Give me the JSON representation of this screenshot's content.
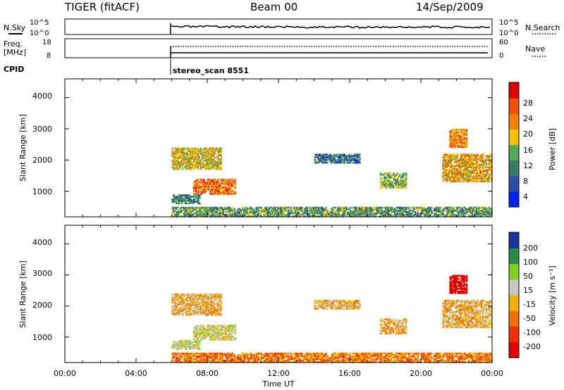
{
  "header": {
    "radar": "TIGER (fitACF)",
    "beam": "Beam 00",
    "date": "14/Sep/2009"
  },
  "noise_panel": {
    "left_label": "N.Sky",
    "left_ticks": [
      "10^5",
      "10^0"
    ],
    "right_label": "N.Search",
    "right_ticks": [
      "10^5",
      "10^0"
    ]
  },
  "freq_panel": {
    "left_label_line1": "Freq.",
    "left_label_line2": "[MHz]",
    "left_ticks": [
      "18",
      "8"
    ],
    "right_label": "Nave",
    "right_ticks": [
      "60",
      "0"
    ]
  },
  "cpid": {
    "label": "CPID",
    "program": "stereo_scan 8551"
  },
  "power_panel": {
    "ylabel": "Slant Range [km]",
    "yticks": [
      "4000",
      "3000",
      "2000",
      "1000"
    ],
    "colorbar_label": "Power [dB]",
    "colorbar_ticks": [
      "28",
      "24",
      "20",
      "16",
      "12",
      "8",
      "4"
    ]
  },
  "velocity_panel": {
    "ylabel": "Slant Range [km]",
    "yticks": [
      "4000",
      "3000",
      "2000",
      "1000"
    ],
    "colorbar_label": "Velocity [m s⁻¹]",
    "colorbar_ticks": [
      "200",
      "100",
      "50",
      "15",
      "-15",
      "-50",
      "-100",
      "-200"
    ]
  },
  "xaxis": {
    "label": "Time UT",
    "ticks": [
      "00:00",
      "04:00",
      "08:00",
      "12:00",
      "16:00",
      "20:00",
      "00:00"
    ]
  },
  "chart_data": {
    "type": "heatmap",
    "x_range_hours": [
      0,
      24
    ],
    "y_range_km": [
      180,
      4600
    ],
    "data_start_hour": 6,
    "power_colors": [
      "#0022ee",
      "#2f4fa5",
      "#3a7a5e",
      "#55aa55",
      "#f0c000",
      "#f08000",
      "#f05000",
      "#e00000"
    ],
    "power_levels": [
      4,
      8,
      12,
      16,
      20,
      24,
      28
    ],
    "velocity_colors": [
      "#2030a0",
      "#2a8a4a",
      "#7fd020",
      "#c8c8c0",
      "#f0b000",
      "#f07000",
      "#f03000",
      "#e00000"
    ],
    "velocity_levels": [
      200,
      100,
      50,
      15,
      -15,
      -50,
      -100,
      -200
    ],
    "echo_regions": [
      {
        "t0": 6.0,
        "t1": 8.8,
        "r0": 1700,
        "r1": 2400,
        "power_dB": 18,
        "velocity": 0
      },
      {
        "t0": 7.2,
        "t1": 9.6,
        "r0": 900,
        "r1": 1400,
        "power_dB": 24,
        "velocity": 30
      },
      {
        "t0": 6.0,
        "t1": 7.6,
        "r0": 600,
        "r1": 900,
        "power_dB": 10,
        "velocity": 40
      },
      {
        "t0": 17.7,
        "t1": 19.2,
        "r0": 1100,
        "r1": 1600,
        "power_dB": 14,
        "velocity": 0
      },
      {
        "t0": 21.2,
        "t1": 24.0,
        "r0": 1300,
        "r1": 2200,
        "power_dB": 20,
        "velocity": 0
      },
      {
        "t0": 21.6,
        "t1": 22.6,
        "r0": 2400,
        "r1": 3000,
        "power_dB": 22,
        "velocity": -150
      },
      {
        "t0": 14.0,
        "t1": 16.6,
        "r0": 1900,
        "r1": 2200,
        "power_dB": 8,
        "velocity": 0
      },
      {
        "t0": 6.0,
        "t1": 24.0,
        "r0": 180,
        "r1": 500,
        "power_dB": 12,
        "velocity": -30
      }
    ]
  }
}
